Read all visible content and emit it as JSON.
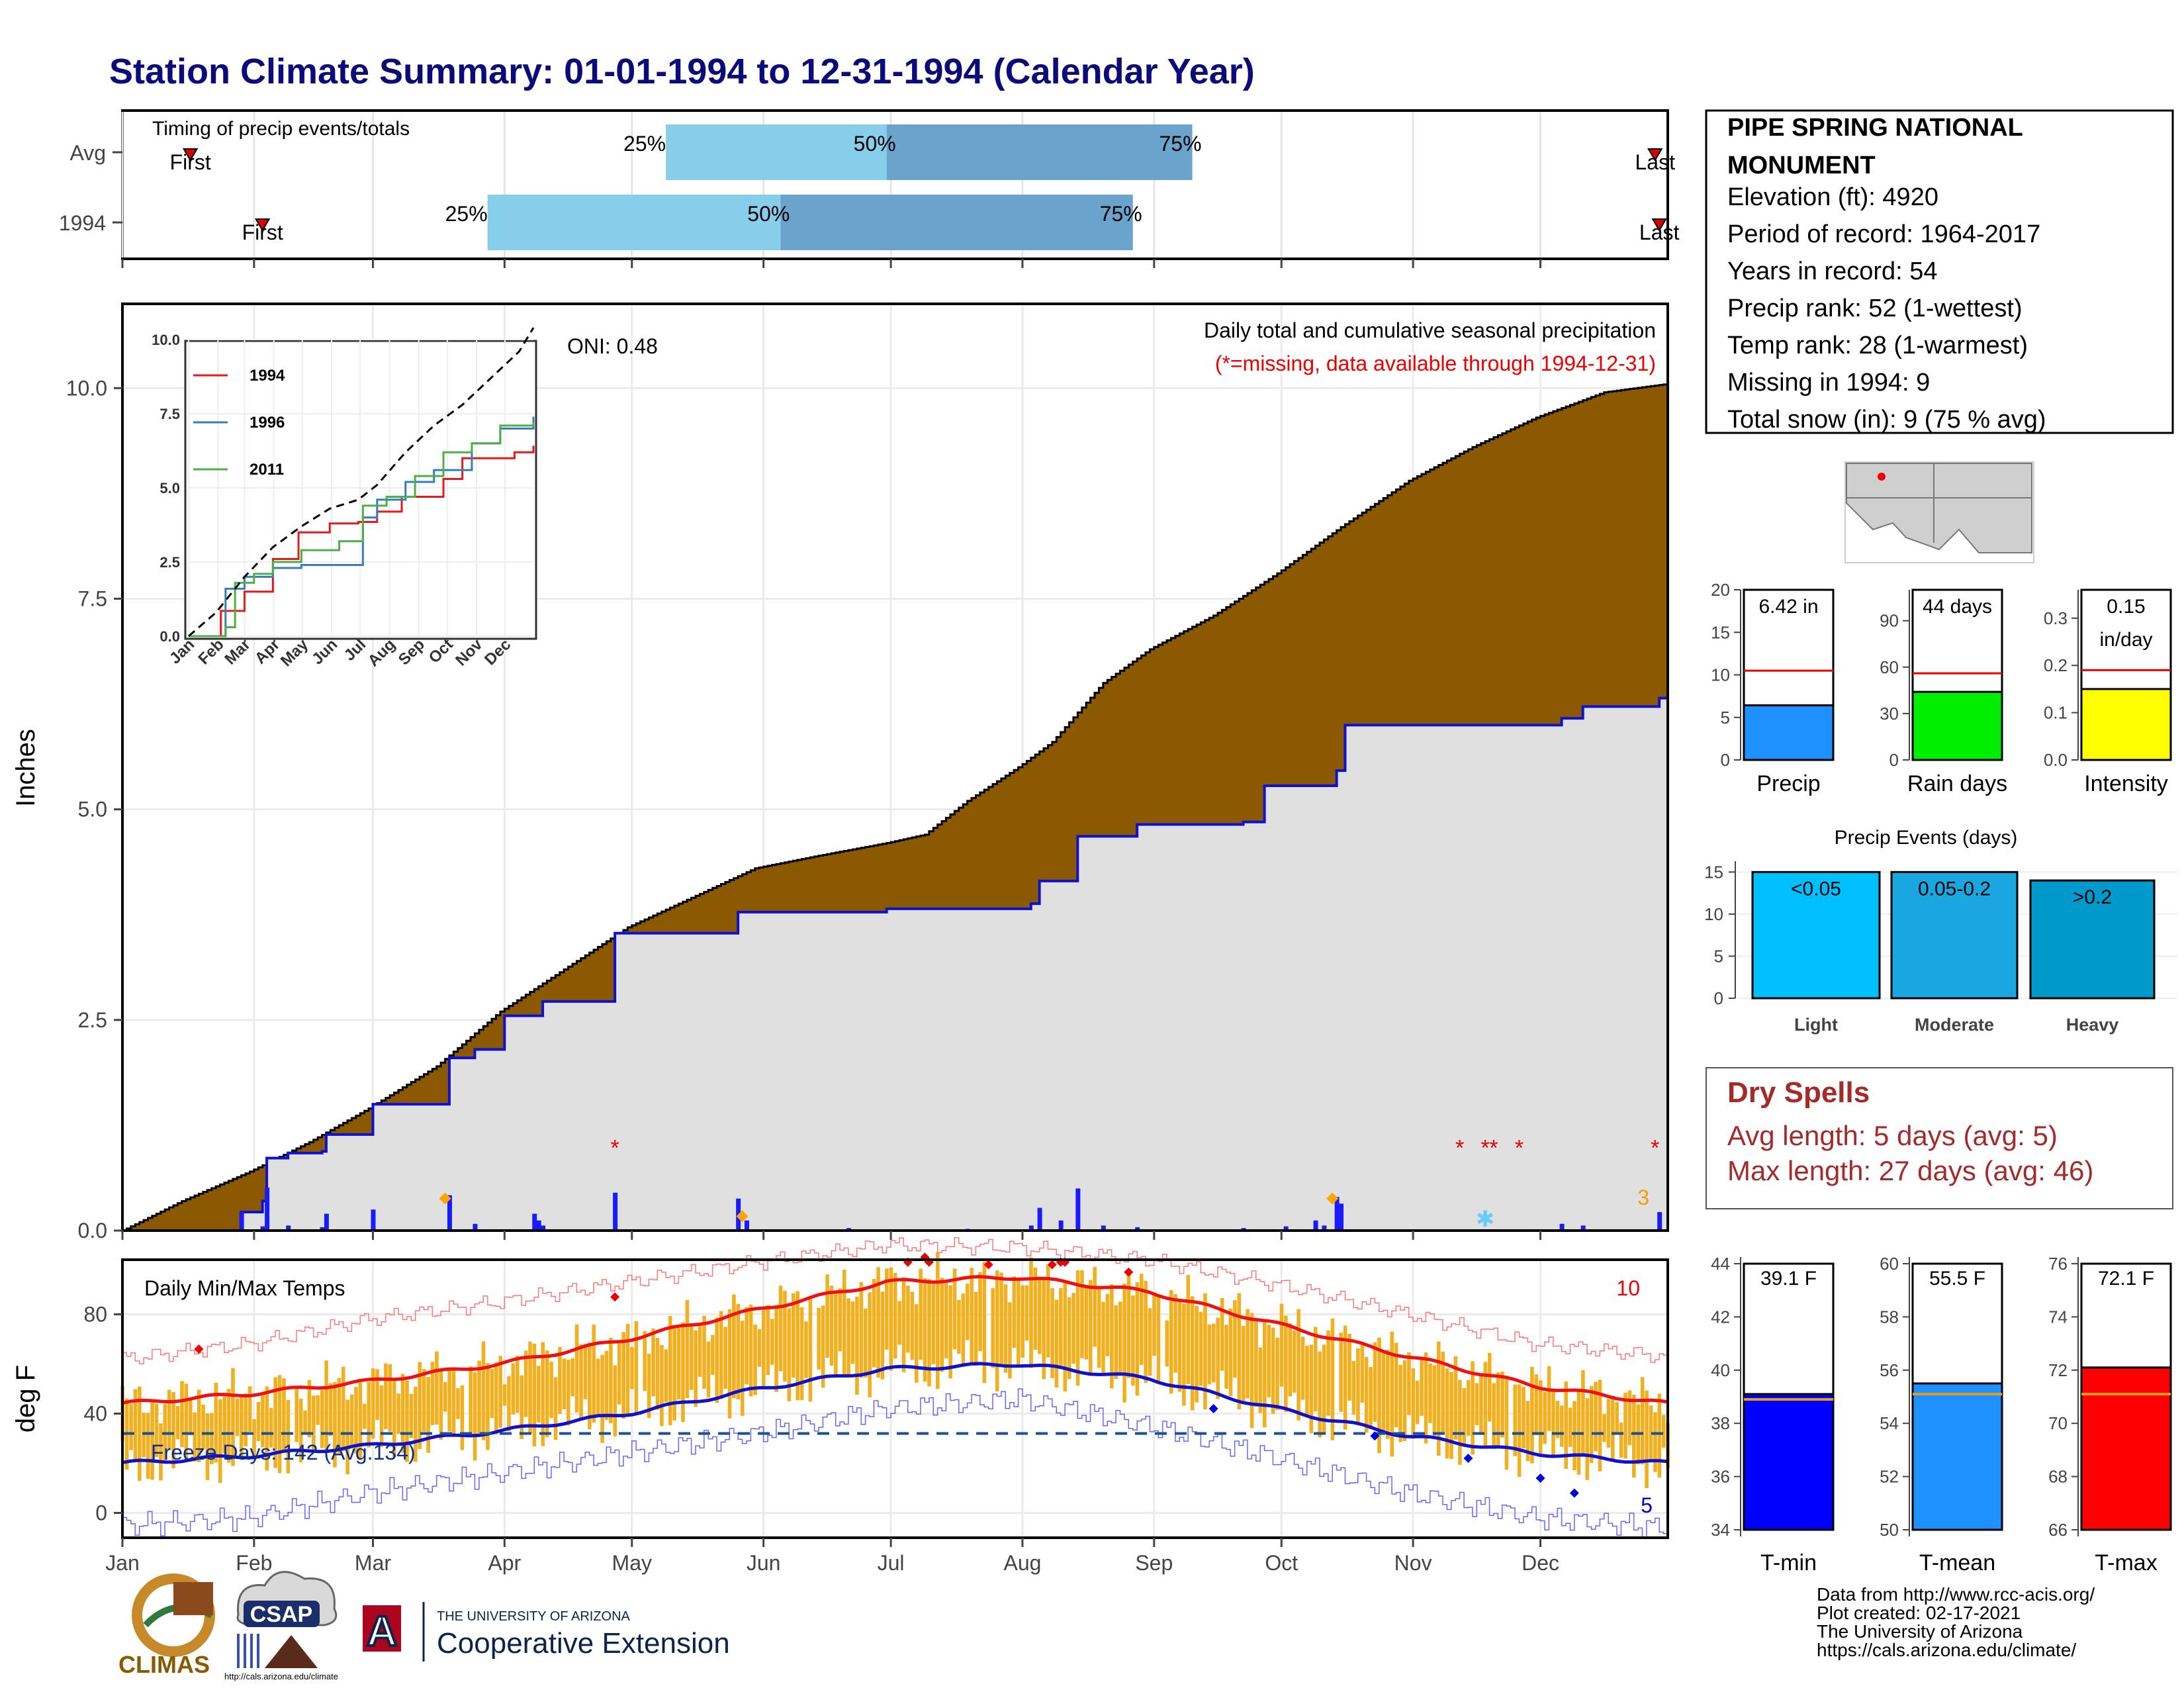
{
  "title": "Station Climate Summary: 01-01-1994 to 12-31-1994 (Calendar Year)",
  "months": [
    "Jan",
    "Feb",
    "Mar",
    "Apr",
    "May",
    "Jun",
    "Jul",
    "Aug",
    "Sep",
    "Oct",
    "Nov",
    "Dec"
  ],
  "colors": {
    "title": "#0b0b7a",
    "precip_fill": "#8b5a00",
    "current_fill": "#e0e0e0",
    "current_line": "#1010d0",
    "q_light": "#87ceeb",
    "q_dark": "#6aa4cc",
    "temp_bar": "#f0b020",
    "tmax_norm": "#ee1111",
    "tmin_norm": "#1111cc",
    "dry": "#a52a2a"
  },
  "timing": {
    "title": "Timing of precip events/totals",
    "rows": [
      {
        "label": "Avg",
        "first_day": 17,
        "last_day": 362,
        "q25": 129,
        "q50": 181,
        "q75": 253,
        "labels": [
          "First",
          "25%",
          "50%",
          "75%",
          "Last"
        ]
      },
      {
        "label": "1994",
        "first_day": 34,
        "last_day": 363,
        "q25": 87,
        "q50": 156,
        "q75": 239,
        "labels": [
          "First",
          "25%",
          "50%",
          "75%",
          "Last"
        ]
      }
    ]
  },
  "precip_panel": {
    "ylabel": "Inches",
    "yticks": [
      "0.0",
      "2.5",
      "5.0",
      "7.5",
      "10.0"
    ],
    "ylim": [
      0,
      11
    ],
    "heading": "Daily total and cumulative seasonal precipitation",
    "missing_note": "(*=missing, data available through 1994-12-31)",
    "oni": "ONI: 0.48",
    "corner_count": "3"
  },
  "chart_data": [
    {
      "type": "area",
      "name": "Cumulative precipitation (average vs 1994)",
      "x_units": "day of year",
      "ylim": [
        0,
        11
      ],
      "avg_cumulative": [
        [
          1,
          0
        ],
        [
          15,
          0.35
        ],
        [
          31,
          0.7
        ],
        [
          45,
          1.05
        ],
        [
          59,
          1.45
        ],
        [
          75,
          1.95
        ],
        [
          90,
          2.6
        ],
        [
          105,
          3.1
        ],
        [
          120,
          3.6
        ],
        [
          135,
          3.95
        ],
        [
          150,
          4.3
        ],
        [
          165,
          4.45
        ],
        [
          181,
          4.6
        ],
        [
          190,
          4.7
        ],
        [
          200,
          5.1
        ],
        [
          212,
          5.5
        ],
        [
          220,
          5.8
        ],
        [
          232,
          6.5
        ],
        [
          243,
          6.9
        ],
        [
          258,
          7.3
        ],
        [
          273,
          7.8
        ],
        [
          288,
          8.35
        ],
        [
          304,
          8.9
        ],
        [
          319,
          9.3
        ],
        [
          334,
          9.65
        ],
        [
          350,
          9.95
        ],
        [
          365,
          10.05
        ]
      ],
      "year_1994_cumulative": [
        [
          1,
          0
        ],
        [
          28,
          0
        ],
        [
          29,
          0.22
        ],
        [
          34,
          0.35
        ],
        [
          35,
          0.86
        ],
        [
          40,
          0.92
        ],
        [
          48,
          0.94
        ],
        [
          49,
          1.14
        ],
        [
          60,
          1.5
        ],
        [
          78,
          2.05
        ],
        [
          84,
          2.15
        ],
        [
          91,
          2.55
        ],
        [
          100,
          2.72
        ],
        [
          117,
          3.53
        ],
        [
          146,
          3.78
        ],
        [
          181,
          3.82
        ],
        [
          200,
          3.82
        ],
        [
          215,
          3.88
        ],
        [
          217,
          4.15
        ],
        [
          226,
          4.68
        ],
        [
          240,
          4.82
        ],
        [
          265,
          4.85
        ],
        [
          270,
          5.28
        ],
        [
          287,
          5.46
        ],
        [
          289,
          6.0
        ],
        [
          340,
          6.08
        ],
        [
          345,
          6.22
        ],
        [
          363,
          6.32
        ],
        [
          365,
          6.42
        ]
      ],
      "daily_bars": [
        [
          29,
          0.22
        ],
        [
          34,
          0.05
        ],
        [
          35,
          0.51
        ],
        [
          40,
          0.06
        ],
        [
          48,
          0.04
        ],
        [
          49,
          0.2
        ],
        [
          60,
          0.25
        ],
        [
          78,
          0.42
        ],
        [
          84,
          0.08
        ],
        [
          98,
          0.2
        ],
        [
          99,
          0.12
        ],
        [
          100,
          0.06
        ],
        [
          117,
          0.45
        ],
        [
          146,
          0.38
        ],
        [
          148,
          0.12
        ],
        [
          172,
          0.03
        ],
        [
          200,
          0.02
        ],
        [
          215,
          0.06
        ],
        [
          217,
          0.27
        ],
        [
          222,
          0.12
        ],
        [
          226,
          0.5
        ],
        [
          232,
          0.06
        ],
        [
          240,
          0.04
        ],
        [
          265,
          0.03
        ],
        [
          275,
          0.05
        ],
        [
          282,
          0.12
        ],
        [
          284,
          0.06
        ],
        [
          287,
          0.4
        ],
        [
          288,
          0.32
        ],
        [
          340,
          0.08
        ],
        [
          345,
          0.06
        ],
        [
          363,
          0.22
        ]
      ],
      "missing_markers": [
        [
          117,
          1.0
        ],
        [
          316,
          1.0
        ],
        [
          322,
          1.0
        ],
        [
          324,
          1.0
        ],
        [
          330,
          1.0
        ],
        [
          362,
          1.0
        ]
      ],
      "snow_markers": [
        [
          77,
          0.38
        ],
        [
          147,
          0.17
        ],
        [
          286,
          0.38
        ]
      ],
      "snowflake_day": 322
    },
    {
      "type": "line",
      "name": "Inset: cumulative precipitation analog years",
      "x_ticks": [
        "Jan",
        "Feb",
        "Mar",
        "Apr",
        "May",
        "Jun",
        "Jul",
        "Aug",
        "Sep",
        "Oct",
        "Nov",
        "Dec"
      ],
      "y_ticks": [
        "0.0",
        "2.5",
        "5.0",
        "7.5",
        "10.0"
      ],
      "ylim": [
        0,
        10
      ],
      "series": [
        {
          "name": "1994",
          "color": "#e41a1c",
          "points": [
            [
              1,
              0
            ],
            [
              35,
              0.85
            ],
            [
              60,
              1.5
            ],
            [
              90,
              2.6
            ],
            [
              117,
              3.5
            ],
            [
              150,
              3.8
            ],
            [
              180,
              3.85
            ],
            [
              200,
              4.2
            ],
            [
              226,
              4.7
            ],
            [
              270,
              5.3
            ],
            [
              290,
              6.0
            ],
            [
              345,
              6.2
            ],
            [
              365,
              6.42
            ]
          ]
        },
        {
          "name": "1996",
          "color": "#377eb8",
          "points": [
            [
              1,
              0
            ],
            [
              40,
              1.6
            ],
            [
              60,
              2.0
            ],
            [
              90,
              2.3
            ],
            [
              120,
              2.4
            ],
            [
              160,
              2.4
            ],
            [
              185,
              4.0
            ],
            [
              200,
              4.6
            ],
            [
              230,
              5.2
            ],
            [
              260,
              5.6
            ],
            [
              300,
              6.5
            ],
            [
              330,
              7.0
            ],
            [
              365,
              7.4
            ]
          ]
        },
        {
          "name": "2011",
          "color": "#4daf4a",
          "points": [
            [
              1,
              0
            ],
            [
              40,
              0.3
            ],
            [
              50,
              1.8
            ],
            [
              70,
              2.1
            ],
            [
              90,
              2.5
            ],
            [
              120,
              2.9
            ],
            [
              160,
              3.2
            ],
            [
              185,
              4.4
            ],
            [
              210,
              4.7
            ],
            [
              240,
              5.4
            ],
            [
              270,
              6.2
            ],
            [
              300,
              6.5
            ],
            [
              330,
              7.1
            ],
            [
              365,
              7.2
            ]
          ]
        },
        {
          "name": "avg",
          "color": "#000000",
          "dash": true,
          "points": [
            [
              1,
              0
            ],
            [
              30,
              0.8
            ],
            [
              60,
              2.0
            ],
            [
              90,
              3.0
            ],
            [
              120,
              3.7
            ],
            [
              150,
              4.3
            ],
            [
              180,
              4.6
            ],
            [
              200,
              5.1
            ],
            [
              230,
              6.2
            ],
            [
              260,
              7.1
            ],
            [
              290,
              7.8
            ],
            [
              320,
              8.7
            ],
            [
              350,
              9.6
            ],
            [
              365,
              10.4
            ]
          ]
        }
      ]
    },
    {
      "type": "bar",
      "name": "Daily Min/Max Temps",
      "ylabel": "deg F",
      "yticks": [
        "0",
        "40",
        "80"
      ],
      "ylim": [
        -10,
        102
      ],
      "normal_tmax": [
        [
          1,
          44
        ],
        [
          31,
          48
        ],
        [
          59,
          53
        ],
        [
          90,
          60
        ],
        [
          120,
          70
        ],
        [
          151,
          82
        ],
        [
          181,
          93
        ],
        [
          212,
          95
        ],
        [
          243,
          89
        ],
        [
          273,
          76
        ],
        [
          304,
          63
        ],
        [
          334,
          51
        ],
        [
          365,
          44
        ]
      ],
      "normal_tmin": [
        [
          1,
          20
        ],
        [
          31,
          23
        ],
        [
          59,
          27
        ],
        [
          90,
          33
        ],
        [
          120,
          40
        ],
        [
          151,
          50
        ],
        [
          181,
          58
        ],
        [
          212,
          60
        ],
        [
          243,
          54
        ],
        [
          273,
          42
        ],
        [
          304,
          31
        ],
        [
          334,
          24
        ],
        [
          365,
          20
        ]
      ],
      "record_high": [
        [
          1,
          62
        ],
        [
          31,
          68
        ],
        [
          59,
          78
        ],
        [
          90,
          85
        ],
        [
          120,
          93
        ],
        [
          151,
          101
        ],
        [
          181,
          108
        ],
        [
          212,
          107
        ],
        [
          243,
          102
        ],
        [
          273,
          92
        ],
        [
          304,
          80
        ],
        [
          334,
          68
        ],
        [
          365,
          63
        ]
      ],
      "record_low": [
        [
          1,
          -5
        ],
        [
          31,
          -2
        ],
        [
          59,
          8
        ],
        [
          90,
          16
        ],
        [
          120,
          24
        ],
        [
          151,
          32
        ],
        [
          181,
          42
        ],
        [
          212,
          46
        ],
        [
          243,
          35
        ],
        [
          273,
          22
        ],
        [
          304,
          8
        ],
        [
          334,
          -2
        ],
        [
          365,
          -6
        ]
      ],
      "freeze_line": 32,
      "freeze_text": "Freeze Days: 142 (Avg.134)",
      "heading": "Daily Min/Max Temps",
      "record_high_count": "10",
      "record_low_count": "5",
      "record_high_days": [
        [
          19,
          66
        ],
        [
          117,
          87
        ],
        [
          186,
          101
        ],
        [
          190,
          103
        ],
        [
          191,
          101
        ],
        [
          205,
          100
        ],
        [
          220,
          100
        ],
        [
          222,
          101
        ],
        [
          223,
          101
        ],
        [
          238,
          97
        ]
      ],
      "record_low_days": [
        [
          258,
          42
        ],
        [
          296,
          31
        ],
        [
          318,
          22
        ],
        [
          335,
          14
        ],
        [
          343,
          8
        ]
      ]
    },
    {
      "type": "bar",
      "name": "Precip / Rain days / Intensity",
      "categories": [
        "Precip",
        "Rain days",
        "Intensity"
      ],
      "values": [
        6.42,
        44,
        0.15
      ],
      "normals": [
        10.5,
        56,
        0.19
      ],
      "labels": [
        "6.42 in",
        "44 days",
        "0.15\nin/day"
      ],
      "ylims": [
        [
          0,
          20
        ],
        [
          0,
          110
        ],
        [
          0,
          0.36
        ]
      ],
      "colors": [
        "#1e90ff",
        "#00ee00",
        "#ffff00"
      ]
    },
    {
      "type": "bar",
      "name": "Precip Events (days)",
      "categories": [
        "Light",
        "Moderate",
        "Heavy"
      ],
      "bin_labels": [
        "<0.05",
        "0.05-0.2",
        ">0.2"
      ],
      "values": [
        15,
        15,
        14
      ],
      "ylim": [
        0,
        15.5
      ],
      "colors": [
        "#00bfff",
        "#1aa7e0",
        "#0099cc"
      ]
    },
    {
      "type": "bar",
      "name": "Annual temperature",
      "categories": [
        "T-min",
        "T-mean",
        "T-max"
      ],
      "values": [
        39.1,
        55.5,
        72.1
      ],
      "normals": [
        38.9,
        55.1,
        71.1
      ],
      "labels": [
        "39.1 F",
        "55.5 F",
        "72.1 F"
      ],
      "ylims": [
        [
          34,
          44
        ],
        [
          50,
          60
        ],
        [
          66,
          76
        ]
      ],
      "colors": [
        "#0000ff",
        "#1e90ff",
        "#ff0000"
      ]
    }
  ],
  "station": {
    "name_line1": "PIPE SPRING NATIONAL",
    "name_line2": "MONUMENT",
    "lines": [
      "Elevation (ft): 4920",
      "Period of record: 1964-2017",
      "Years in record: 54",
      "Precip rank: 52 (1-wettest)",
      "Temp rank: 28 (1-warmest)",
      "Missing in 1994: 9",
      "Total snow (in): 9 (75 % avg)"
    ]
  },
  "events_title": "Precip Events (days)",
  "dry_spells": {
    "title": "Dry Spells",
    "avg": "Avg length: 5 days (avg: 5)",
    "max": "Max length: 27 days (avg: 46)"
  },
  "footer": {
    "lines": [
      "Data from http://www.rcc-acis.org/",
      "Plot created: 02-17-2021",
      "The University of Arizona",
      "https://cals.arizona.edu/climate/"
    ],
    "logo_climas": "CLIMAS",
    "logo_csap": "CSAP",
    "logo_csap_url": "http://cals.arizona.edu/climate",
    "logo_ua_small": "THE UNIVERSITY OF ARIZONA",
    "logo_ua_big": "Cooperative Extension"
  }
}
